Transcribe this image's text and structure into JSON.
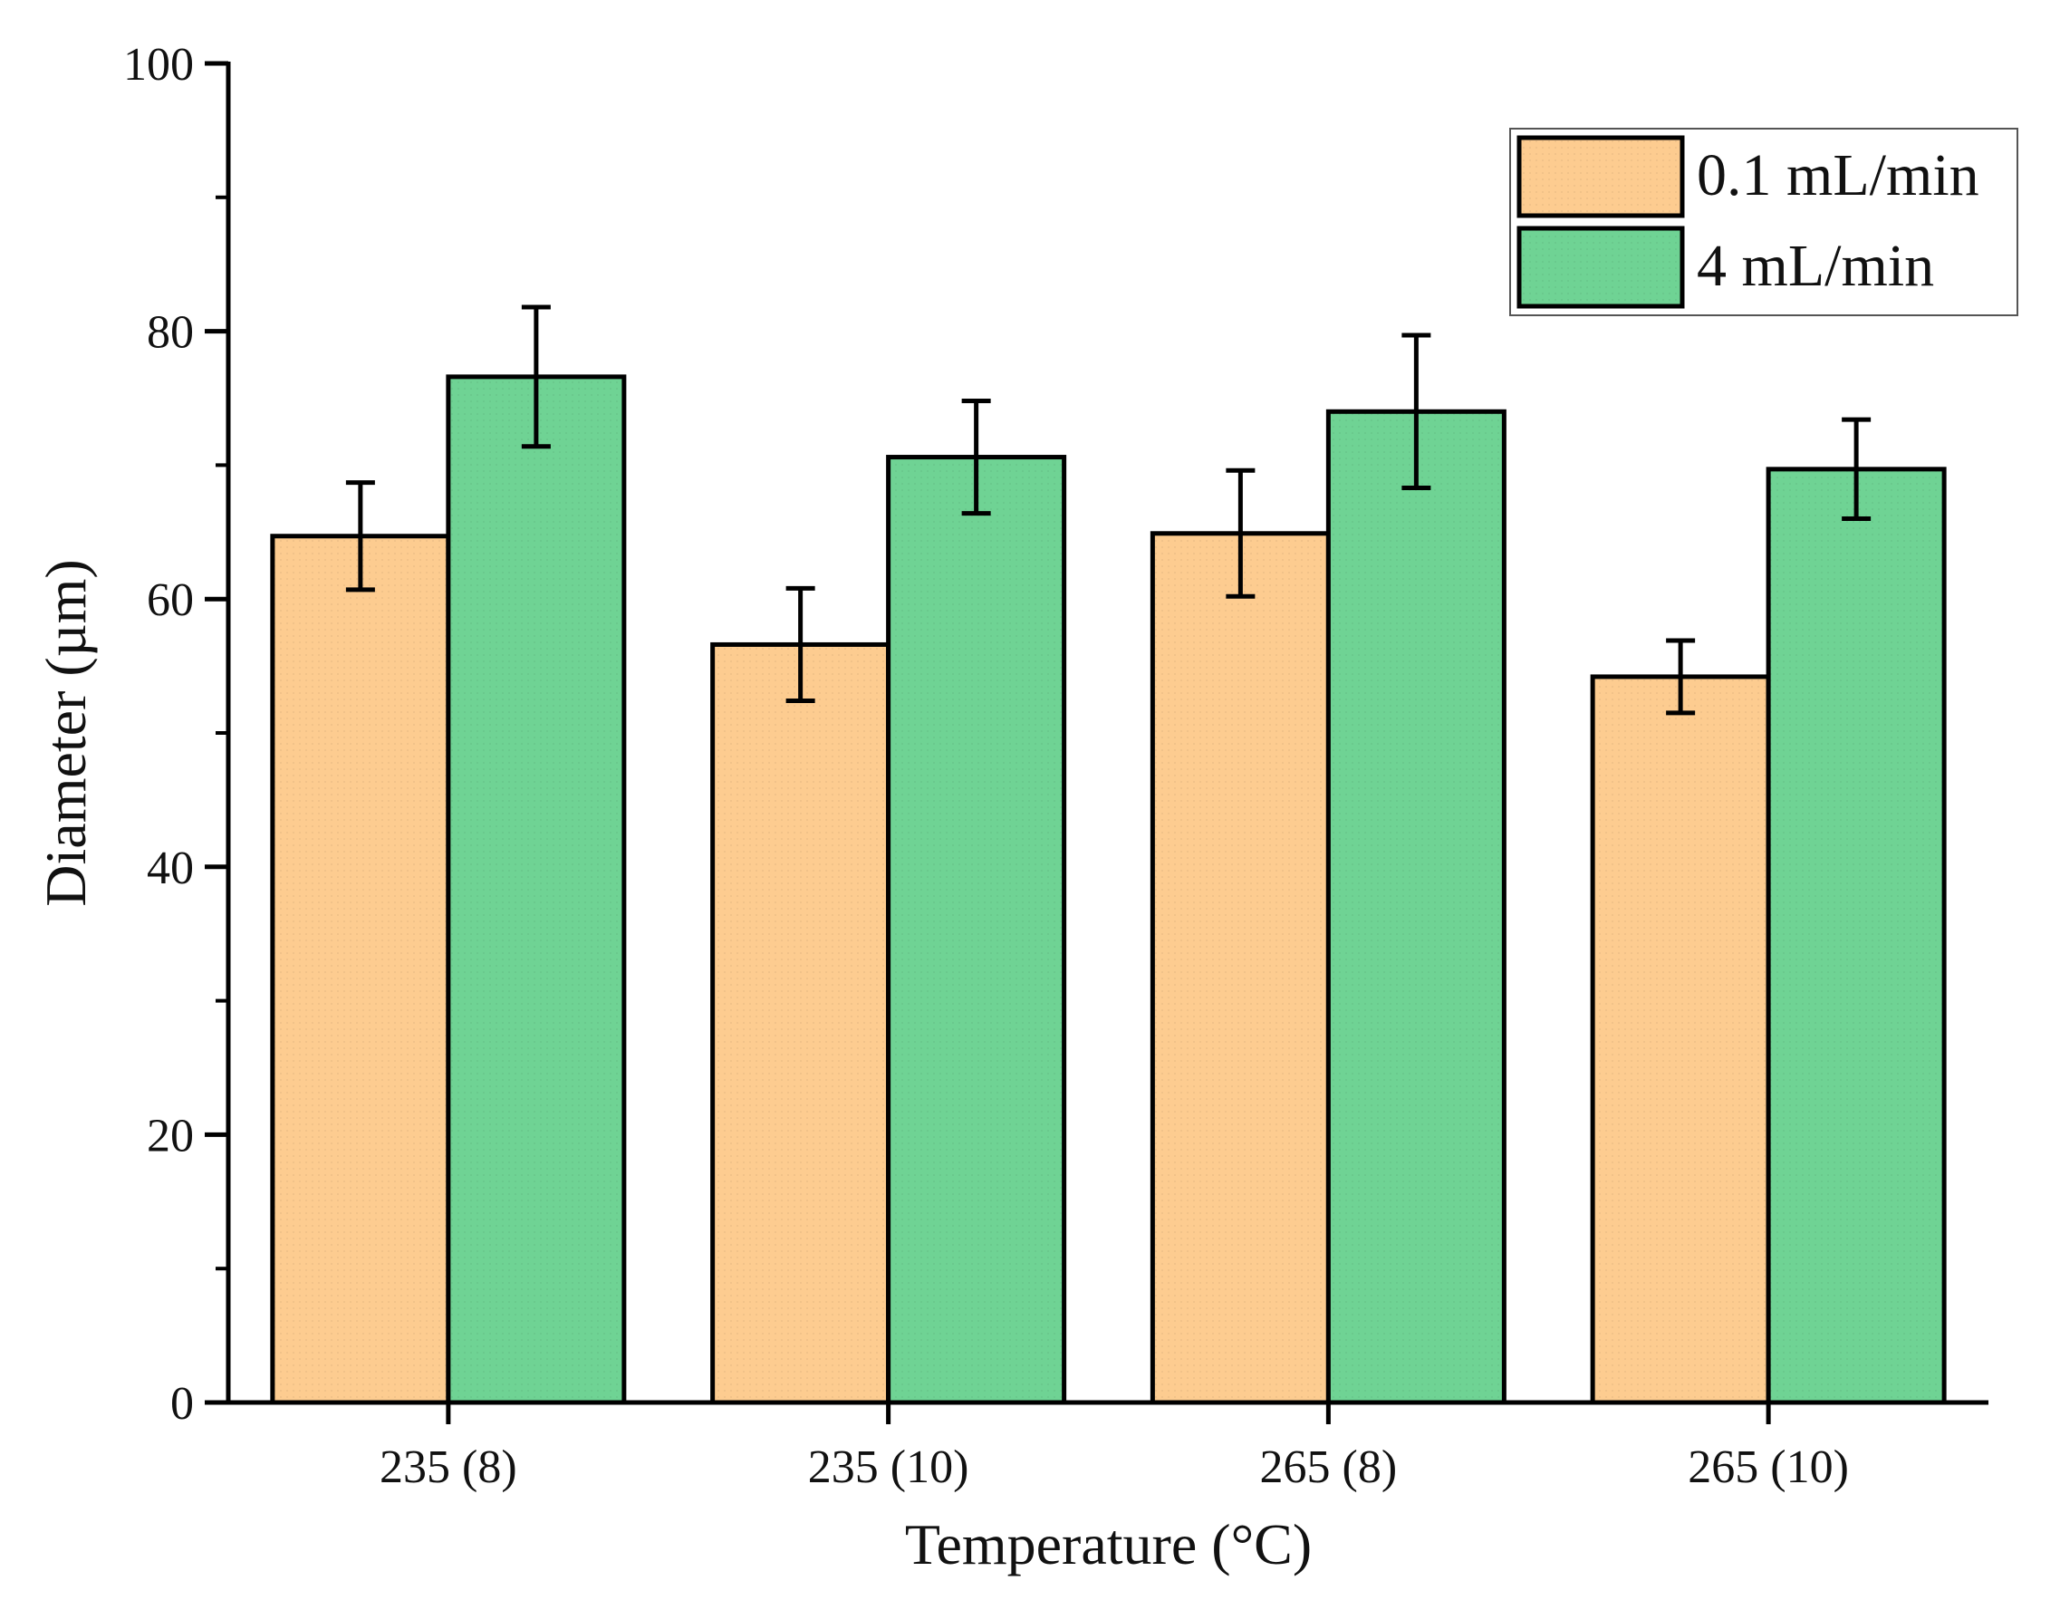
{
  "chart_data": {
    "type": "bar",
    "title": "",
    "xlabel": "Temperature (°C)",
    "ylabel": "Diameter (µm)",
    "ylim": [
      0,
      100
    ],
    "yticks": [
      "0",
      "20",
      "40",
      "60",
      "80",
      "100"
    ],
    "yticks_values": [
      0,
      20,
      40,
      60,
      80,
      100
    ],
    "categories": [
      "235 (8)",
      "235 (10)",
      "265 (8)",
      "265 (10)"
    ],
    "series": [
      {
        "name": "0.1 mL/min",
        "color": "#fdcc90",
        "values": [
          64.7,
          56.6,
          64.9,
          54.2
        ],
        "errors": [
          4.0,
          4.2,
          4.7,
          2.7
        ]
      },
      {
        "name": "4 mL/min",
        "color": "#6fd394",
        "values": [
          76.6,
          70.6,
          74.0,
          69.7
        ],
        "errors": [
          5.2,
          4.2,
          5.7,
          3.7
        ]
      }
    ],
    "legend_position": "top-right",
    "grid": false
  }
}
